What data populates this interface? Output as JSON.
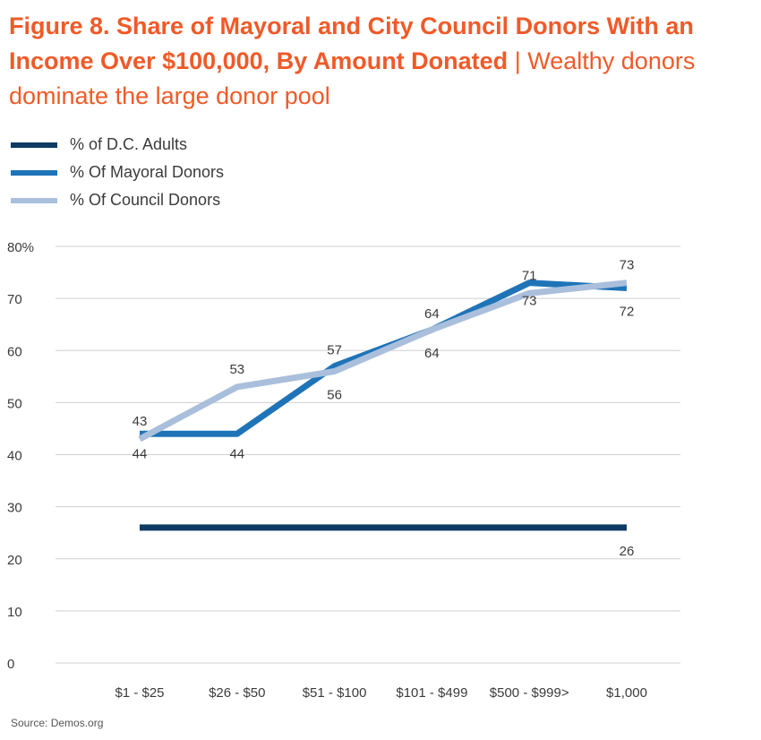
{
  "title": {
    "bold": "Figure 8. Share of Mayoral and City Council Donors With an Income Over $100,000, By Amount Donated",
    "separator": "|",
    "subtitle": "Wealthy donors dominate the large donor pool"
  },
  "source": "Source: Demos.org",
  "colors": {
    "title": "#f05a28",
    "adults": "#0d3b63",
    "mayoral": "#1f74b8",
    "council": "#a9bfdc"
  },
  "chart_data": {
    "type": "line",
    "categories": [
      "$1 - $25",
      "$26 - $50",
      "$51 - $100",
      "$101 - $499",
      "$500 - $999>",
      "$1,000"
    ],
    "ylim": [
      0,
      80
    ],
    "yticks": [
      "0",
      "10",
      "20",
      "30",
      "40",
      "50",
      "60",
      "70",
      "80%"
    ],
    "legend_position": "top-left",
    "grid": true,
    "series": [
      {
        "name": "% of D.C. Adults",
        "color": "#0d3b63",
        "values": [
          26,
          26,
          26,
          26,
          26,
          26
        ],
        "labels": [
          null,
          null,
          null,
          null,
          null,
          "26"
        ]
      },
      {
        "name": "% Of Mayoral Donors",
        "color": "#1f74b8",
        "values": [
          44,
          44,
          57,
          64,
          73,
          72
        ],
        "labels": [
          "44",
          "44",
          "57",
          "64",
          "73",
          "72"
        ]
      },
      {
        "name": "% Of Council Donors",
        "color": "#a9bfdc",
        "values": [
          43,
          53,
          56,
          64,
          71,
          73
        ],
        "labels": [
          "43",
          "53",
          "56",
          "64",
          "71",
          "73"
        ]
      }
    ]
  }
}
